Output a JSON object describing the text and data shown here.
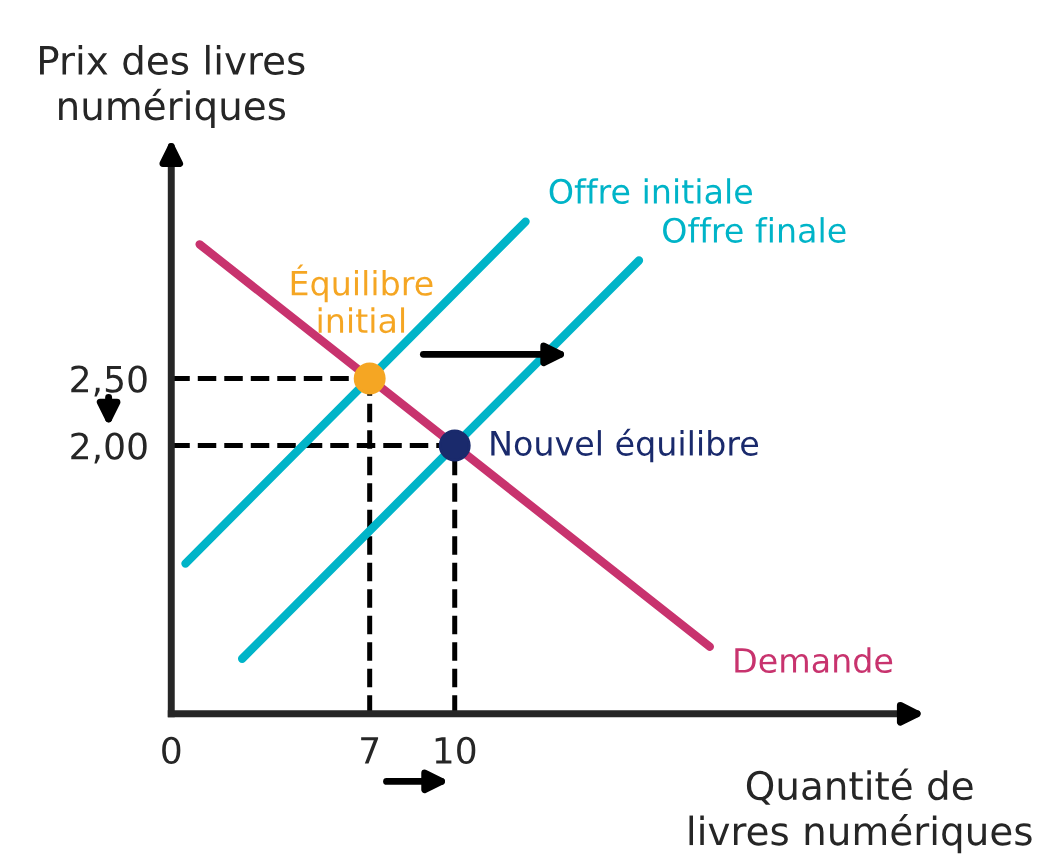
{
  "chart_data": {
    "type": "line",
    "xlabel": "Quantité de\nlivres numériques",
    "ylabel": "Prix des livres\nnumériques",
    "xlim": [
      0,
      26
    ],
    "ylim": [
      0,
      4.2
    ],
    "xticks": [
      0,
      7,
      10
    ],
    "yticks": [
      {
        "value": 2.5,
        "label": "2,50"
      },
      {
        "value": 2.0,
        "label": "2,00"
      }
    ],
    "grid": false,
    "legend": false,
    "line_style": "solid",
    "series": [
      {
        "name": "Offre initiale",
        "color": "#00b4c8",
        "x": [
          0.5,
          12.5
        ],
        "values": [
          1.12,
          3.67
        ]
      },
      {
        "name": "Offre finale",
        "color": "#00b4c8",
        "x": [
          2.5,
          16.5
        ],
        "values": [
          0.41,
          3.38
        ]
      },
      {
        "name": "Demande",
        "color": "#c8336e",
        "x": [
          1,
          19
        ],
        "values": [
          3.5,
          0.5
        ]
      },
      {
        "name": "Équilibre initial",
        "type": "scatter",
        "marker": "circle",
        "color": "#f5a623",
        "x": [
          7
        ],
        "values": [
          2.5
        ]
      },
      {
        "name": "Nouvel équilibre",
        "type": "scatter",
        "marker": "circle",
        "color": "#1a2a6c",
        "x": [
          10
        ],
        "values": [
          2.0
        ]
      }
    ],
    "ref_lines": [
      {
        "axis": "y",
        "value": 2.5,
        "color": "#000000",
        "line_style": "dashed"
      },
      {
        "axis": "y",
        "value": 2.0,
        "color": "#000000",
        "line_style": "dashed"
      },
      {
        "axis": "x",
        "value": 7,
        "color": "#000000",
        "line_style": "dashed"
      },
      {
        "axis": "x",
        "value": 10,
        "color": "#000000",
        "line_style": "dashed"
      }
    ]
  }
}
